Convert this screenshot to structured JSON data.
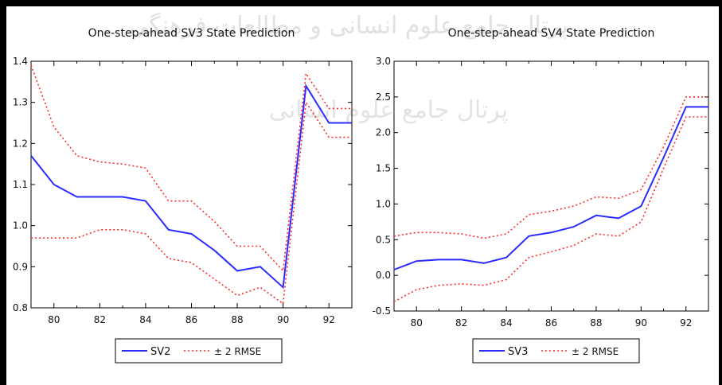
{
  "colors": {
    "frame": "#000000",
    "background": "#ffffff",
    "axis": "#000000",
    "state_line": "#2b2bff",
    "rmse_band": "#ff2a2a",
    "watermark": "#bdbdbd"
  },
  "watermark": {
    "line1": "پرتال جامع علوم انسانی و مطالعات فرهنگی",
    "line2": "پرتال جامع علوم انسانی"
  },
  "chart_data": [
    {
      "type": "line",
      "title": "One-step-ahead SV3 State Prediction",
      "xlabel": "",
      "ylabel": "",
      "x": [
        79,
        80,
        81,
        82,
        83,
        84,
        85,
        86,
        87,
        88,
        89,
        90,
        91,
        92,
        93
      ],
      "xlim": [
        79,
        93
      ],
      "ylim": [
        0.8,
        1.4
      ],
      "x_ticks": [
        80,
        82,
        84,
        86,
        88,
        90,
        92
      ],
      "x_tick_labels": [
        "80",
        "82",
        "84",
        "86",
        "88",
        "90",
        "92"
      ],
      "y_ticks": [
        0.8,
        0.9,
        1.0,
        1.1,
        1.2,
        1.3,
        1.4
      ],
      "y_tick_labels": [
        "0.8",
        "0.9",
        "1.0",
        "1.1",
        "1.2",
        "1.3",
        "1.4"
      ],
      "grid": false,
      "legend_position": "bottom-center",
      "series": [
        {
          "name": "SV2",
          "style": "solid",
          "values": [
            1.17,
            1.1,
            1.07,
            1.07,
            1.07,
            1.06,
            0.99,
            0.98,
            0.94,
            0.89,
            0.9,
            0.85,
            1.34,
            1.25,
            1.25
          ]
        },
        {
          "name": "± 2 RMSE",
          "style": "dotted",
          "values": [
            1.39,
            1.24,
            1.17,
            1.155,
            1.15,
            1.14,
            1.06,
            1.06,
            1.01,
            0.95,
            0.95,
            0.89,
            1.37,
            1.285,
            1.285
          ]
        },
        {
          "name": "",
          "style": "dotted",
          "values": [
            0.97,
            0.97,
            0.97,
            0.99,
            0.99,
            0.98,
            0.92,
            0.91,
            0.87,
            0.83,
            0.85,
            0.81,
            1.3,
            1.215,
            1.215
          ]
        }
      ]
    },
    {
      "type": "line",
      "title": "One-step-ahead SV4 State Prediction",
      "xlabel": "",
      "ylabel": "",
      "x": [
        79,
        80,
        81,
        82,
        83,
        84,
        85,
        86,
        87,
        88,
        89,
        90,
        91,
        92,
        93
      ],
      "xlim": [
        79,
        93
      ],
      "ylim": [
        -0.5,
        3.0
      ],
      "x_ticks": [
        80,
        82,
        84,
        86,
        88,
        90,
        92
      ],
      "x_tick_labels": [
        "80",
        "82",
        "84",
        "86",
        "88",
        "90",
        "92"
      ],
      "y_ticks": [
        -0.5,
        0.0,
        0.5,
        1.0,
        1.5,
        2.0,
        2.5,
        3.0
      ],
      "y_tick_labels": [
        "-0.5",
        "0.0",
        "0.5",
        "1.0",
        "1.5",
        "2.0",
        "2.5",
        "3.0"
      ],
      "grid": false,
      "legend_position": "bottom-center",
      "series": [
        {
          "name": "SV3",
          "style": "solid",
          "values": [
            0.08,
            0.2,
            0.22,
            0.22,
            0.17,
            0.25,
            0.55,
            0.6,
            0.68,
            0.84,
            0.8,
            0.97,
            1.65,
            2.36,
            2.36
          ]
        },
        {
          "name": "± 2 RMSE",
          "style": "dotted",
          "values": [
            0.55,
            0.6,
            0.6,
            0.58,
            0.52,
            0.58,
            0.85,
            0.9,
            0.97,
            1.1,
            1.08,
            1.2,
            1.8,
            2.5,
            2.5
          ]
        },
        {
          "name": "",
          "style": "dotted",
          "values": [
            -0.37,
            -0.2,
            -0.14,
            -0.12,
            -0.14,
            -0.06,
            0.25,
            0.33,
            0.42,
            0.58,
            0.55,
            0.75,
            1.5,
            2.22,
            2.22
          ]
        }
      ]
    }
  ]
}
